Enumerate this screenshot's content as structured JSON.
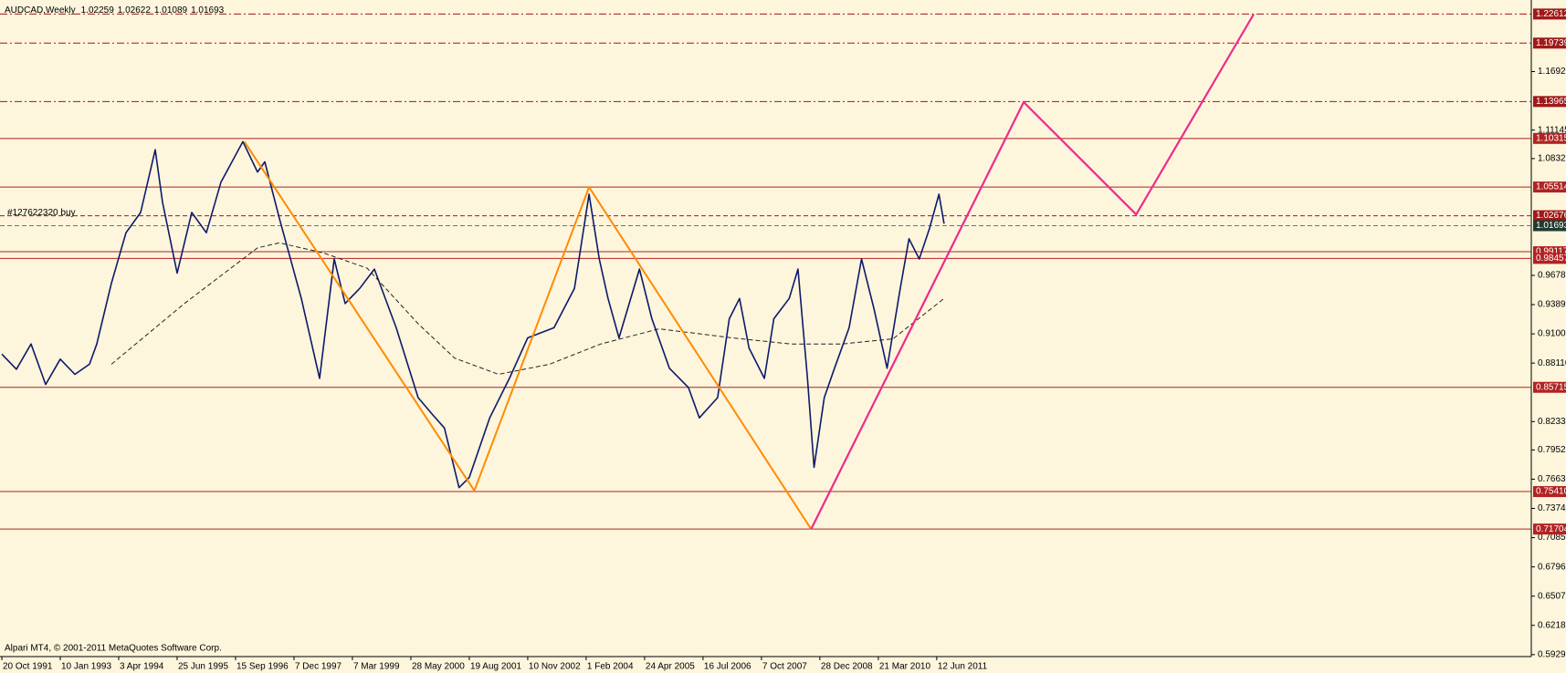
{
  "chart_data": {
    "type": "line",
    "symbol": "AUDCAD,Weekly",
    "ohlc": [
      1.02259,
      1.02622,
      1.01089,
      1.01693
    ],
    "order_label": "#127622320 buy",
    "copyright": "Alpari MT4, © 2001-2011 MetaQuotes Software Corp.",
    "background": "#fdf5dc",
    "xlim": [
      0,
      209.4
    ],
    "ylim": [
      0.591,
      1.24
    ],
    "xticks": [
      {
        "value": 0,
        "label": "20 Oct 1991"
      },
      {
        "value": 8,
        "label": "10 Jan 1993"
      },
      {
        "value": 16,
        "label": "3 Apr 1994"
      },
      {
        "value": 24,
        "label": "25 Jun 1995"
      },
      {
        "value": 32,
        "label": "15 Sep 1996"
      },
      {
        "value": 40,
        "label": "7 Dec 1997"
      },
      {
        "value": 48,
        "label": "7 Mar 1999"
      },
      {
        "value": 56,
        "label": "28 May 2000"
      },
      {
        "value": 64,
        "label": "19 Aug 2001"
      },
      {
        "value": 72,
        "label": "10 Nov 2002"
      },
      {
        "value": 80,
        "label": "1 Feb 2004"
      },
      {
        "value": 88,
        "label": "24 Apr 2005"
      },
      {
        "value": 96,
        "label": "16 Jul 2006"
      },
      {
        "value": 104,
        "label": "7 Oct 2007"
      },
      {
        "value": 112,
        "label": "28 Dec 2008"
      },
      {
        "value": 120,
        "label": "21 Mar 2010"
      },
      {
        "value": 128,
        "label": "12 Jun 2011"
      }
    ],
    "yticks": [
      1.16925,
      1.11145,
      1.08325,
      {
        "value": 0.9678,
        "label": "0.96780"
      },
      {
        "value": 0.9389,
        "label": "0.93890"
      },
      {
        "value": 0.91,
        "label": "0.91000"
      },
      {
        "value": 0.8811,
        "label": "0.88110"
      },
      {
        "value": 0.8233,
        "label": "0.82330"
      },
      0.79525,
      0.76635,
      0.73745,
      0.70855,
      0.67965,
      0.65075,
      0.62185,
      0.59295
    ],
    "levels": [
      {
        "price": 1.22612,
        "style": "dashdot",
        "color": "#a01818"
      },
      {
        "price": 1.19739,
        "style": "dashdot",
        "color": "#a01818"
      },
      {
        "price": 1.13965,
        "style": "dashdot",
        "color": "#a01818"
      },
      {
        "price": 1.10315,
        "style": "solid",
        "color": "#b22222"
      },
      {
        "price": 1.05514,
        "style": "solid",
        "color": "#b22222"
      },
      {
        "price": 1.02676,
        "style": "dashed",
        "color": "#a01818"
      },
      {
        "price": 1.01693,
        "style": "dashed",
        "color": "#5a7a8a",
        "box": "#1f3b2f"
      },
      {
        "price": 0.99117,
        "style": "solid",
        "color": "#b22222"
      },
      {
        "price": 0.98457,
        "style": "solid",
        "color": "#b22222"
      },
      {
        "price": 0.85715,
        "style": "solid",
        "color": "#b22222"
      },
      {
        "price": 0.7541,
        "label": "0.75410",
        "style": "solid",
        "color": "#b22222"
      },
      {
        "price": 0.71704,
        "style": "solid",
        "color": "#b22222"
      }
    ],
    "series": [
      {
        "color": "#0d1a6b",
        "style": "solid",
        "width": 1.6,
        "x": [
          0,
          2,
          4,
          6,
          8,
          10,
          12,
          13,
          15,
          17,
          19,
          21,
          22,
          24,
          26,
          28,
          30,
          33,
          35,
          36,
          38,
          41,
          43.5,
          45.5,
          47,
          49,
          51,
          54,
          57,
          59,
          60.6,
          62.6,
          64,
          66.8,
          69.5,
          72,
          75.6,
          78.4,
          80.4,
          81.8,
          83,
          84.5,
          87.3,
          89,
          91.4,
          94,
          95.5,
          98,
          99.6,
          101,
          102.3,
          104.4,
          105.7,
          107.8,
          109,
          110.3,
          111.2,
          112.6,
          114,
          116,
          117.7,
          119.4,
          121.2,
          123,
          124.2,
          125.6,
          127,
          128.3,
          129
        ],
        "values": [
          0.89,
          0.875,
          0.9,
          0.86,
          0.885,
          0.87,
          0.88,
          0.9,
          0.96,
          1.01,
          1.03,
          1.092,
          1.04,
          0.97,
          1.03,
          1.01,
          1.06,
          1.1,
          1.07,
          1.08,
          1.024,
          0.945,
          0.866,
          0.984,
          0.94,
          0.955,
          0.974,
          0.916,
          0.847,
          0.83,
          0.817,
          0.758,
          0.768,
          0.827,
          0.866,
          0.906,
          0.916,
          0.955,
          1.048,
          0.984,
          0.945,
          0.906,
          0.974,
          0.925,
          0.876,
          0.857,
          0.827,
          0.847,
          0.925,
          0.945,
          0.896,
          0.866,
          0.925,
          0.945,
          0.974,
          0.866,
          0.778,
          0.847,
          0.876,
          0.916,
          0.984,
          0.935,
          0.876,
          0.955,
          1.004,
          0.984,
          1.014,
          1.048,
          1.019
        ]
      },
      {
        "color": "#222222",
        "style": "dashed",
        "width": 1,
        "x": [
          15,
          25,
          35,
          38,
          44,
          50,
          57,
          62,
          68,
          75,
          82,
          90,
          100,
          108,
          115,
          122,
          129
        ],
        "values": [
          0.88,
          0.94,
          0.995,
          1.0,
          0.99,
          0.975,
          0.92,
          0.886,
          0.87,
          0.88,
          0.9,
          0.915,
          0.906,
          0.9,
          0.9,
          0.905,
          0.945
        ]
      },
      {
        "color": "#ff8c00",
        "style": "solid",
        "width": 2,
        "x": [
          33.2,
          64.7,
          80.4,
          110.8
        ],
        "values": [
          1.1,
          0.755,
          1.055,
          0.717
        ]
      },
      {
        "color": "#ee2a8c",
        "style": "solid",
        "width": 2.2,
        "x": [
          110.8,
          139.9,
          155.3,
          171.4
        ],
        "values": [
          0.717,
          1.139,
          1.028,
          1.226
        ]
      }
    ]
  }
}
